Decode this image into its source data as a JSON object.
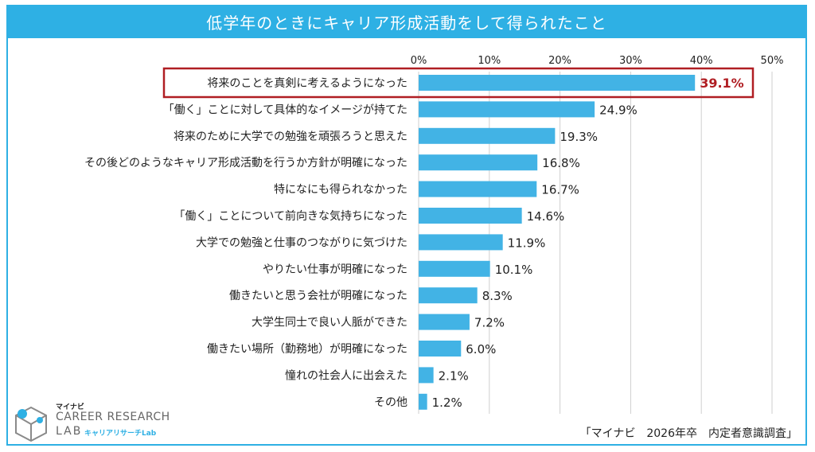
{
  "title": "低学年のときにキャリア形成活動をして得られたこと",
  "source": "「マイナビ　2026年卒　内定者意識調査」",
  "logo": {
    "brand": "マイナビ",
    "line1": "CAREER RESEARCH",
    "line2": "LAB",
    "sub": "キャリアリサーチLab"
  },
  "colors": {
    "bar": "#42b3e5",
    "accent": "#2eb0e4",
    "highlight": "#b01e23",
    "grid": "#cfcfcf"
  },
  "chart_data": {
    "type": "bar",
    "orientation": "horizontal",
    "title": "低学年のときにキャリア形成活動をして得られたこと",
    "xlim": [
      0,
      50
    ],
    "ticks": [
      "0%",
      "10%",
      "20%",
      "30%",
      "40%",
      "50%"
    ],
    "tick_values": [
      0,
      10,
      20,
      30,
      40,
      50
    ],
    "grid": true,
    "categories": [
      "将来のことを真剣に考えるようになった",
      "「働く」ことに対して具体的なイメージが持てた",
      "将来のために大学での勉強を頑張ろうと思えた",
      "その後どのようなキャリア形成活動を行うか方針が明確になった",
      "特になにも得られなかった",
      "「働く」ことについて前向きな気持ちになった",
      "大学での勉強と仕事のつながりに気づけた",
      "やりたい仕事が明確になった",
      "働きたいと思う会社が明確になった",
      "大学生同士で良い人脈ができた",
      "働きたい場所（勤務地）が明確になった",
      "憧れの社会人に出会えた",
      "その他"
    ],
    "values": [
      39.1,
      24.9,
      19.3,
      16.8,
      16.7,
      14.6,
      11.9,
      10.1,
      8.3,
      7.2,
      6.0,
      2.1,
      1.2
    ],
    "labels": [
      "39.1%",
      "24.9%",
      "19.3%",
      "16.8%",
      "16.7%",
      "14.6%",
      "11.9%",
      "10.1%",
      "8.3%",
      "7.2%",
      "6.0%",
      "2.1%",
      "1.2%"
    ],
    "highlight_index": 0
  }
}
